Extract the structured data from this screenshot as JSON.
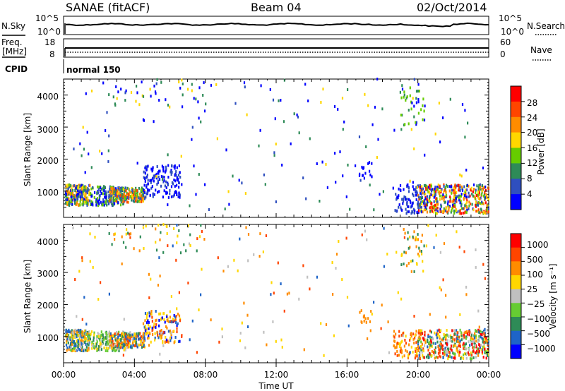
{
  "header": {
    "radar": "SANAE (fitACF)",
    "beam": "Beam 04",
    "date": "02/Oct/2014"
  },
  "top_panels": {
    "nsky_label": "N.Sky",
    "nsearch_label": "N.Search",
    "freq_label_1": "Freq.",
    "freq_label_2": "[MHz]",
    "nave_label": "Nave",
    "cpid_label": "CPID",
    "cpid_value": "normal 150",
    "noise_ticks_left": [
      "10^5",
      "10^0"
    ],
    "noise_ticks_right": [
      "10^5",
      "10^0"
    ],
    "freq_ticks_left": [
      "18",
      "8"
    ],
    "nave_ticks_right": [
      "60",
      "0"
    ]
  },
  "chart_data": [
    {
      "type": "heatmap",
      "name": "power",
      "ylabel": "Slant Range [km]",
      "colorbar_label": "Power [dB]",
      "colorbar_ticks": [
        "28",
        "24",
        "20",
        "16",
        "12",
        "8",
        "4"
      ],
      "colors": [
        "#0000ff",
        "#2f4fbf",
        "#2e8b57",
        "#66cc00",
        "#ffd700",
        "#ff8c00",
        "#ff4500",
        "#ff0000"
      ],
      "ylim": [
        180,
        4500
      ],
      "yticks": [
        "4000",
        "3000",
        "2000",
        "1000"
      ],
      "x_start_hours": 0,
      "x_end_hours": 24
    },
    {
      "type": "heatmap",
      "name": "velocity",
      "ylabel": "Slant Range [km]",
      "colorbar_label": "Velocity [m s⁻¹]",
      "colorbar_ticks": [
        "1000",
        "500",
        "100",
        "25",
        "−25",
        "−100",
        "−500",
        "−1000"
      ],
      "colors": [
        "#0000ff",
        "#1e64c8",
        "#2e8b57",
        "#66cc33",
        "#c0c0c0",
        "#ffd700",
        "#ff8c00",
        "#ff4500",
        "#ff0000"
      ],
      "ylim": [
        180,
        4500
      ],
      "yticks": [
        "4000",
        "3000",
        "2000",
        "1000"
      ],
      "x_start_hours": 0,
      "x_end_hours": 24
    }
  ],
  "x_axis": {
    "ticks": [
      "00:00",
      "04:00",
      "08:00",
      "12:00",
      "16:00",
      "20:00",
      "00:00"
    ],
    "label": "Time UT"
  }
}
